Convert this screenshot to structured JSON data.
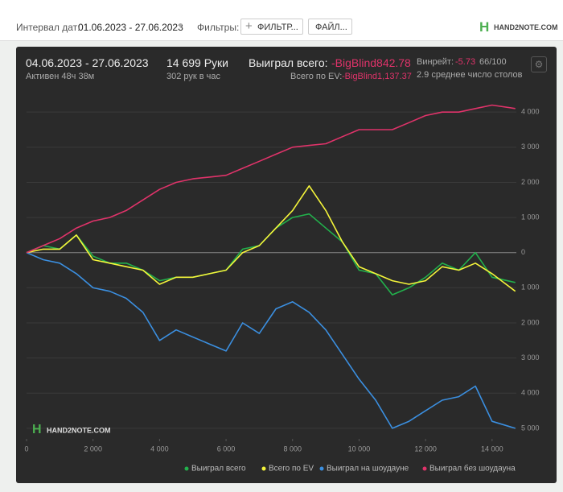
{
  "header": {
    "date_label": "Интервал дат:",
    "date_range": "01.06.2023 - 27.06.2023",
    "filters_label": "Фильтры:",
    "filter_button": "ФИЛЬТР...",
    "file_button": "ФАЙЛ...",
    "logo": "HAND2NOTE.COM"
  },
  "stats": {
    "period": "04.06.2023 - 27.06.2023",
    "active": "Активен 48ч 38м",
    "hands": "14 699 Руки",
    "hands_per_hour": "302 рук в час",
    "won_label": "Выиграл всего:",
    "won_value": "-BigBlind842.78",
    "ev_label": "Всего по EV:",
    "ev_value": "-BigBlind1,137.37",
    "winrate_label": "Винрейт:",
    "winrate_value": "-5.73",
    "winrate_unit": "66/100",
    "tables": "2.9 среднее число столов"
  },
  "chart_data": {
    "type": "line",
    "watermark": "HAND2NOTE.COM",
    "x": [
      0,
      500,
      1000,
      1500,
      2000,
      2500,
      3000,
      3500,
      4000,
      4500,
      5000,
      5500,
      6000,
      6500,
      7000,
      7500,
      8000,
      8500,
      9000,
      9500,
      10000,
      10500,
      11000,
      11500,
      12000,
      12500,
      13000,
      13500,
      14000,
      14699
    ],
    "series": [
      {
        "name": "Выиграл всего",
        "color": "#22b14c",
        "values": [
          0,
          200,
          100,
          500,
          -100,
          -300,
          -300,
          -500,
          -800,
          -700,
          -700,
          -600,
          -500,
          100,
          200,
          700,
          1000,
          1100,
          700,
          300,
          -500,
          -600,
          -1200,
          -1000,
          -700,
          -300,
          -500,
          0,
          -700,
          -850
        ]
      },
      {
        "name": "Всего по EV",
        "color": "#f5f53a",
        "values": [
          0,
          100,
          100,
          500,
          -200,
          -300,
          -400,
          -500,
          -900,
          -700,
          -700,
          -600,
          -500,
          0,
          200,
          700,
          1200,
          1900,
          1200,
          300,
          -400,
          -600,
          -800,
          -900,
          -800,
          -400,
          -500,
          -300,
          -600,
          -1100
        ]
      },
      {
        "name": "Выиграл на шоудауне",
        "color": "#3b8fe0",
        "values": [
          0,
          -200,
          -300,
          -600,
          -1000,
          -1100,
          -1300,
          -1700,
          -2500,
          -2200,
          -2400,
          -2600,
          -2800,
          -2000,
          -2300,
          -1600,
          -1400,
          -1700,
          -2200,
          -2900,
          -3600,
          -4200,
          -5000,
          -4800,
          -4500,
          -4200,
          -4100,
          -3800,
          -4800,
          -5000
        ]
      },
      {
        "name": "Выиграл без шоудауна",
        "color": "#e0336a",
        "values": [
          0,
          200,
          400,
          700,
          900,
          1000,
          1200,
          1500,
          1800,
          2000,
          2100,
          2150,
          2200,
          2400,
          2600,
          2800,
          3000,
          3050,
          3100,
          3300,
          3500,
          3500,
          3500,
          3700,
          3900,
          4000,
          4000,
          4100,
          4200,
          4100
        ]
      }
    ],
    "xlim": [
      0,
      14730
    ],
    "ylim": [
      -5300,
      4600
    ],
    "xticks": [
      0,
      {
        "value": 2000,
        "label": "2 000"
      },
      {
        "value": 4000,
        "label": "4 000"
      },
      {
        "value": 6000,
        "label": "6 000"
      },
      {
        "value": 8000,
        "label": "8 000"
      },
      {
        "value": 10000,
        "label": "10 000"
      },
      {
        "value": 12000,
        "label": "12 000"
      },
      {
        "value": 14000,
        "label": "14 000"
      }
    ],
    "yticks": [
      {
        "value": -5000,
        "label": "5 000"
      },
      {
        "value": -4000,
        "label": "4 000"
      },
      {
        "value": -3000,
        "label": "3 000"
      },
      {
        "value": -2000,
        "label": "2 000"
      },
      {
        "value": -1000,
        "label": "1 000"
      },
      0,
      {
        "value": 1000,
        "label": "1 000"
      },
      {
        "value": 2000,
        "label": "2 000"
      },
      {
        "value": 3000,
        "label": "3 000"
      },
      {
        "value": 4000,
        "label": "4 000"
      }
    ],
    "grid": true
  }
}
